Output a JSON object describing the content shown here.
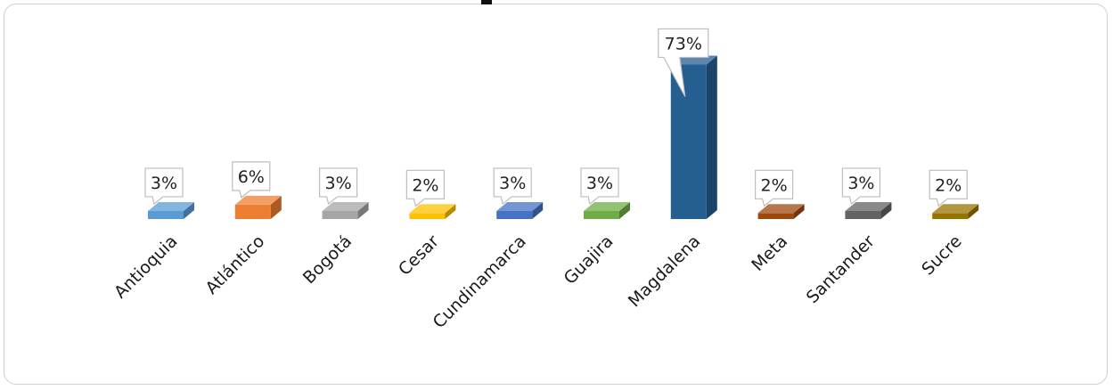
{
  "chart_data": {
    "type": "bar",
    "title": "",
    "xlabel": "",
    "ylabel": "",
    "ylim": [
      0,
      73
    ],
    "grid": false,
    "legend": "none",
    "categories": [
      "Antioquia",
      "Atlántico",
      "Bogotá",
      "Cesar",
      "Cundinamarca",
      "Guajira",
      "Magdalena",
      "Meta",
      "Santander",
      "Sucre"
    ],
    "values": [
      3,
      6,
      3,
      2,
      3,
      3,
      73,
      2,
      3,
      2
    ],
    "labels": [
      "3%",
      "6%",
      "3%",
      "2%",
      "3%",
      "3%",
      "73%",
      "2%",
      "3%",
      "2%"
    ],
    "colors": [
      "#5b9bd5",
      "#ed7d31",
      "#a5a5a5",
      "#ffc000",
      "#4472c4",
      "#70ad47",
      "#255e91",
      "#9e480e",
      "#636363",
      "#997300"
    ]
  }
}
